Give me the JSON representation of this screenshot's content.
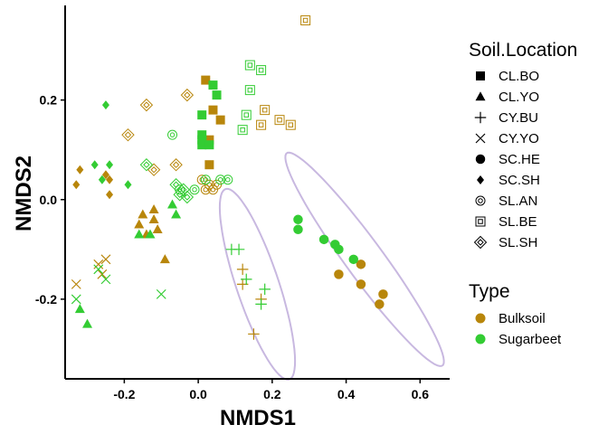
{
  "chart_data": {
    "type": "scatter",
    "title": "",
    "xlabel": "NMDS1",
    "ylabel": "NMDS2",
    "xlim": [
      -0.36,
      0.68
    ],
    "ylim": [
      -0.36,
      0.39
    ],
    "x_ticks": [
      {
        "value": -0.2,
        "label": "-0.2"
      },
      {
        "value": 0.0,
        "label": "0.0"
      },
      {
        "value": 0.2,
        "label": "0.2"
      },
      {
        "value": 0.4,
        "label": "0.4"
      },
      {
        "value": 0.6,
        "label": "0.6"
      }
    ],
    "y_ticks": [
      {
        "value": -0.2,
        "label": "-0.2"
      },
      {
        "value": 0.0,
        "label": "0.0"
      },
      {
        "value": 0.2,
        "label": "0.2"
      }
    ],
    "grid": false,
    "legend_position": "right",
    "colors": {
      "Bulksoil": "#B8860B",
      "Sugarbeet": "#33CC33",
      "ellipse": "#C8B8E0"
    },
    "legend": {
      "shape_title": "Soil.Location",
      "shape_entries": [
        {
          "label": "CL.BO",
          "shape": "square"
        },
        {
          "label": "CL.YO",
          "shape": "triangle"
        },
        {
          "label": "CY.BU",
          "shape": "plus"
        },
        {
          "label": "CY.YO",
          "shape": "cross"
        },
        {
          "label": "SC.HE",
          "shape": "circle"
        },
        {
          "label": "SC.SH",
          "shape": "diamond"
        },
        {
          "label": "SL.AN",
          "shape": "circle-ring"
        },
        {
          "label": "SL.BE",
          "shape": "square-ring"
        },
        {
          "label": "SL.SH",
          "shape": "diamond-ring"
        }
      ],
      "color_title": "Type",
      "color_entries": [
        {
          "label": "Bulksoil",
          "color": "#B8860B"
        },
        {
          "label": "Sugarbeet",
          "color": "#33CC33"
        }
      ]
    },
    "ellipses": [
      {
        "cx": 0.16,
        "cy": -0.17,
        "rx": 0.21,
        "ry": 0.055,
        "angle_deg": -65
      },
      {
        "cx": 0.45,
        "cy": -0.12,
        "rx": 0.3,
        "ry": 0.045,
        "angle_deg": -45
      }
    ],
    "points": [
      {
        "x": 0.02,
        "y": 0.24,
        "shape": "square",
        "type": "Bulksoil"
      },
      {
        "x": 0.04,
        "y": 0.18,
        "shape": "square",
        "type": "Bulksoil"
      },
      {
        "x": 0.06,
        "y": 0.16,
        "shape": "square",
        "type": "Bulksoil"
      },
      {
        "x": 0.03,
        "y": 0.12,
        "shape": "square",
        "type": "Bulksoil"
      },
      {
        "x": 0.03,
        "y": 0.07,
        "shape": "square",
        "type": "Bulksoil"
      },
      {
        "x": 0.04,
        "y": 0.23,
        "shape": "square",
        "type": "Sugarbeet"
      },
      {
        "x": 0.05,
        "y": 0.21,
        "shape": "square",
        "type": "Sugarbeet"
      },
      {
        "x": 0.01,
        "y": 0.17,
        "shape": "square",
        "type": "Sugarbeet"
      },
      {
        "x": 0.01,
        "y": 0.13,
        "shape": "square",
        "type": "Sugarbeet"
      },
      {
        "x": 0.01,
        "y": 0.12,
        "shape": "square",
        "type": "Sugarbeet"
      },
      {
        "x": 0.01,
        "y": 0.11,
        "shape": "square",
        "type": "Sugarbeet"
      },
      {
        "x": 0.03,
        "y": 0.11,
        "shape": "square",
        "type": "Sugarbeet"
      },
      {
        "x": -0.15,
        "y": -0.03,
        "shape": "triangle",
        "type": "Bulksoil"
      },
      {
        "x": -0.12,
        "y": -0.02,
        "shape": "triangle",
        "type": "Bulksoil"
      },
      {
        "x": -0.12,
        "y": -0.04,
        "shape": "triangle",
        "type": "Bulksoil"
      },
      {
        "x": -0.16,
        "y": -0.05,
        "shape": "triangle",
        "type": "Bulksoil"
      },
      {
        "x": -0.14,
        "y": -0.07,
        "shape": "triangle",
        "type": "Bulksoil"
      },
      {
        "x": -0.11,
        "y": -0.06,
        "shape": "triangle",
        "type": "Bulksoil"
      },
      {
        "x": -0.09,
        "y": -0.12,
        "shape": "triangle",
        "type": "Bulksoil"
      },
      {
        "x": -0.07,
        "y": -0.01,
        "shape": "triangle",
        "type": "Sugarbeet"
      },
      {
        "x": -0.06,
        "y": -0.03,
        "shape": "triangle",
        "type": "Sugarbeet"
      },
      {
        "x": -0.16,
        "y": -0.07,
        "shape": "triangle",
        "type": "Sugarbeet"
      },
      {
        "x": -0.13,
        "y": -0.07,
        "shape": "triangle",
        "type": "Sugarbeet"
      },
      {
        "x": -0.3,
        "y": -0.25,
        "shape": "triangle",
        "type": "Sugarbeet"
      },
      {
        "x": -0.32,
        "y": -0.22,
        "shape": "triangle",
        "type": "Sugarbeet"
      },
      {
        "x": 0.12,
        "y": -0.17,
        "shape": "plus",
        "type": "Bulksoil"
      },
      {
        "x": 0.12,
        "y": -0.14,
        "shape": "plus",
        "type": "Bulksoil"
      },
      {
        "x": 0.15,
        "y": -0.27,
        "shape": "plus",
        "type": "Bulksoil"
      },
      {
        "x": 0.17,
        "y": -0.2,
        "shape": "plus",
        "type": "Bulksoil"
      },
      {
        "x": 0.09,
        "y": -0.1,
        "shape": "plus",
        "type": "Sugarbeet"
      },
      {
        "x": 0.11,
        "y": -0.1,
        "shape": "plus",
        "type": "Sugarbeet"
      },
      {
        "x": 0.13,
        "y": -0.16,
        "shape": "plus",
        "type": "Sugarbeet"
      },
      {
        "x": 0.17,
        "y": -0.21,
        "shape": "plus",
        "type": "Sugarbeet"
      },
      {
        "x": 0.18,
        "y": -0.18,
        "shape": "plus",
        "type": "Sugarbeet"
      },
      {
        "x": -0.33,
        "y": -0.17,
        "shape": "cross",
        "type": "Bulksoil"
      },
      {
        "x": -0.27,
        "y": -0.13,
        "shape": "cross",
        "type": "Bulksoil"
      },
      {
        "x": -0.25,
        "y": -0.12,
        "shape": "cross",
        "type": "Bulksoil"
      },
      {
        "x": -0.26,
        "y": -0.15,
        "shape": "cross",
        "type": "Bulksoil"
      },
      {
        "x": -0.33,
        "y": -0.2,
        "shape": "cross",
        "type": "Sugarbeet"
      },
      {
        "x": -0.27,
        "y": -0.14,
        "shape": "cross",
        "type": "Sugarbeet"
      },
      {
        "x": -0.25,
        "y": -0.16,
        "shape": "cross",
        "type": "Sugarbeet"
      },
      {
        "x": -0.1,
        "y": -0.19,
        "shape": "cross",
        "type": "Sugarbeet"
      },
      {
        "x": 0.38,
        "y": -0.15,
        "shape": "circle",
        "type": "Bulksoil"
      },
      {
        "x": 0.44,
        "y": -0.13,
        "shape": "circle",
        "type": "Bulksoil"
      },
      {
        "x": 0.44,
        "y": -0.17,
        "shape": "circle",
        "type": "Bulksoil"
      },
      {
        "x": 0.5,
        "y": -0.19,
        "shape": "circle",
        "type": "Bulksoil"
      },
      {
        "x": 0.49,
        "y": -0.21,
        "shape": "circle",
        "type": "Bulksoil"
      },
      {
        "x": 0.27,
        "y": -0.04,
        "shape": "circle",
        "type": "Sugarbeet"
      },
      {
        "x": 0.27,
        "y": -0.06,
        "shape": "circle",
        "type": "Sugarbeet"
      },
      {
        "x": 0.34,
        "y": -0.08,
        "shape": "circle",
        "type": "Sugarbeet"
      },
      {
        "x": 0.37,
        "y": -0.09,
        "shape": "circle",
        "type": "Sugarbeet"
      },
      {
        "x": 0.38,
        "y": -0.1,
        "shape": "circle",
        "type": "Sugarbeet"
      },
      {
        "x": 0.42,
        "y": -0.12,
        "shape": "circle",
        "type": "Sugarbeet"
      },
      {
        "x": -0.33,
        "y": 0.03,
        "shape": "diamond",
        "type": "Bulksoil"
      },
      {
        "x": -0.32,
        "y": 0.06,
        "shape": "diamond",
        "type": "Bulksoil"
      },
      {
        "x": -0.25,
        "y": 0.05,
        "shape": "diamond",
        "type": "Bulksoil"
      },
      {
        "x": -0.24,
        "y": 0.04,
        "shape": "diamond",
        "type": "Bulksoil"
      },
      {
        "x": -0.24,
        "y": 0.01,
        "shape": "diamond",
        "type": "Bulksoil"
      },
      {
        "x": -0.25,
        "y": 0.19,
        "shape": "diamond",
        "type": "Sugarbeet"
      },
      {
        "x": -0.28,
        "y": 0.07,
        "shape": "diamond",
        "type": "Sugarbeet"
      },
      {
        "x": -0.24,
        "y": 0.07,
        "shape": "diamond",
        "type": "Sugarbeet"
      },
      {
        "x": -0.26,
        "y": 0.04,
        "shape": "diamond",
        "type": "Sugarbeet"
      },
      {
        "x": -0.19,
        "y": 0.03,
        "shape": "diamond",
        "type": "Sugarbeet"
      },
      {
        "x": 0.01,
        "y": 0.04,
        "shape": "circle-ring",
        "type": "Bulksoil"
      },
      {
        "x": 0.03,
        "y": 0.03,
        "shape": "circle-ring",
        "type": "Bulksoil"
      },
      {
        "x": 0.05,
        "y": 0.03,
        "shape": "circle-ring",
        "type": "Bulksoil"
      },
      {
        "x": 0.02,
        "y": 0.02,
        "shape": "circle-ring",
        "type": "Bulksoil"
      },
      {
        "x": 0.04,
        "y": 0.02,
        "shape": "circle-ring",
        "type": "Bulksoil"
      },
      {
        "x": -0.07,
        "y": 0.13,
        "shape": "circle-ring",
        "type": "Sugarbeet"
      },
      {
        "x": -0.05,
        "y": 0.02,
        "shape": "circle-ring",
        "type": "Sugarbeet"
      },
      {
        "x": -0.01,
        "y": 0.02,
        "shape": "circle-ring",
        "type": "Sugarbeet"
      },
      {
        "x": 0.02,
        "y": 0.04,
        "shape": "circle-ring",
        "type": "Sugarbeet"
      },
      {
        "x": 0.06,
        "y": 0.04,
        "shape": "circle-ring",
        "type": "Sugarbeet"
      },
      {
        "x": 0.08,
        "y": 0.04,
        "shape": "circle-ring",
        "type": "Sugarbeet"
      },
      {
        "x": 0.29,
        "y": 0.36,
        "shape": "square-ring",
        "type": "Bulksoil"
      },
      {
        "x": 0.18,
        "y": 0.18,
        "shape": "square-ring",
        "type": "Bulksoil"
      },
      {
        "x": 0.22,
        "y": 0.16,
        "shape": "square-ring",
        "type": "Bulksoil"
      },
      {
        "x": 0.25,
        "y": 0.15,
        "shape": "square-ring",
        "type": "Bulksoil"
      },
      {
        "x": 0.17,
        "y": 0.15,
        "shape": "square-ring",
        "type": "Bulksoil"
      },
      {
        "x": 0.14,
        "y": 0.27,
        "shape": "square-ring",
        "type": "Sugarbeet"
      },
      {
        "x": 0.17,
        "y": 0.26,
        "shape": "square-ring",
        "type": "Sugarbeet"
      },
      {
        "x": 0.14,
        "y": 0.22,
        "shape": "square-ring",
        "type": "Sugarbeet"
      },
      {
        "x": 0.13,
        "y": 0.17,
        "shape": "square-ring",
        "type": "Sugarbeet"
      },
      {
        "x": 0.12,
        "y": 0.14,
        "shape": "square-ring",
        "type": "Sugarbeet"
      },
      {
        "x": -0.14,
        "y": 0.19,
        "shape": "diamond-ring",
        "type": "Bulksoil"
      },
      {
        "x": -0.03,
        "y": 0.21,
        "shape": "diamond-ring",
        "type": "Bulksoil"
      },
      {
        "x": -0.19,
        "y": 0.13,
        "shape": "diamond-ring",
        "type": "Bulksoil"
      },
      {
        "x": -0.06,
        "y": 0.07,
        "shape": "diamond-ring",
        "type": "Bulksoil"
      },
      {
        "x": -0.12,
        "y": 0.06,
        "shape": "diamond-ring",
        "type": "Bulksoil"
      },
      {
        "x": -0.14,
        "y": 0.07,
        "shape": "diamond-ring",
        "type": "Sugarbeet"
      },
      {
        "x": -0.06,
        "y": 0.03,
        "shape": "diamond-ring",
        "type": "Sugarbeet"
      },
      {
        "x": -0.04,
        "y": 0.02,
        "shape": "diamond-ring",
        "type": "Sugarbeet"
      },
      {
        "x": -0.05,
        "y": 0.01,
        "shape": "diamond-ring",
        "type": "Sugarbeet"
      },
      {
        "x": -0.03,
        "y": 0.005,
        "shape": "diamond-ring",
        "type": "Sugarbeet"
      }
    ]
  }
}
